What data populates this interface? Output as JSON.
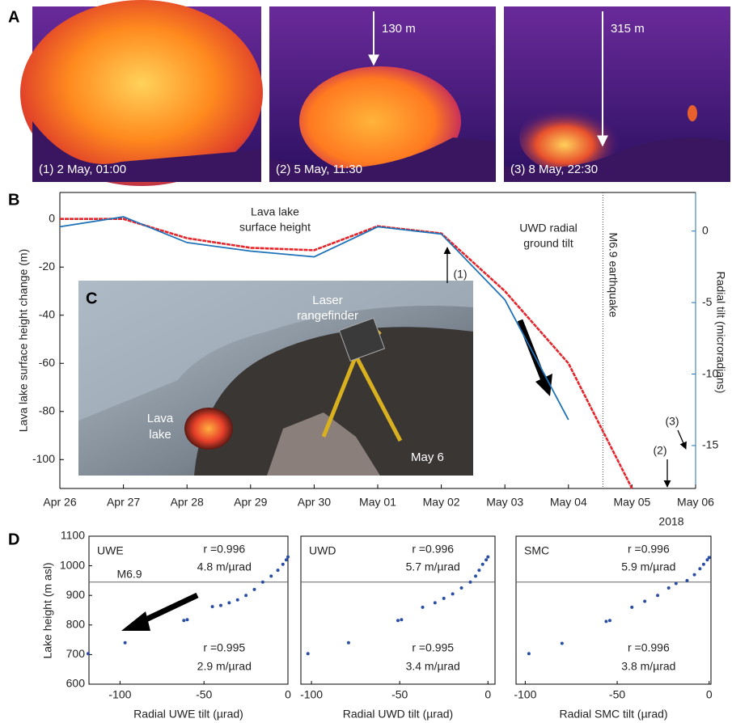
{
  "panel_labels": [
    "A",
    "B",
    "C",
    "D"
  ],
  "photos_a": [
    {
      "caption": "(1) 2 May, 01:00"
    },
    {
      "caption": "(2) 5 May, 11:30",
      "drop": "130 m"
    },
    {
      "caption": "(3) 8 May, 22:30",
      "drop": "315 m"
    }
  ],
  "photo_c": {
    "rangefinder": [
      "Laser",
      "rangefinder"
    ],
    "lake": [
      "Lava",
      "lake"
    ],
    "date": "May 6"
  },
  "chart_data": [
    {
      "type": "line",
      "x": [
        "2018-04-26",
        "2018-04-27",
        "2018-04-28",
        "2018-04-29",
        "2018-04-30",
        "2018-05-01",
        "2018-05-02",
        "2018-05-03",
        "2018-05-04",
        "2018-05-05"
      ],
      "xlim": [
        "2018-04-26",
        "2018-05-06"
      ],
      "xticks": [
        {
          "value": "2018-04-26",
          "label": "Apr 26"
        },
        {
          "value": "2018-04-27",
          "label": "Apr 27"
        },
        {
          "value": "2018-04-28",
          "label": "Apr 28"
        },
        {
          "value": "2018-04-29",
          "label": "Apr 29"
        },
        {
          "value": "2018-04-30",
          "label": "Apr 30"
        },
        {
          "value": "2018-05-01",
          "label": "May 01"
        },
        {
          "value": "2018-05-02",
          "label": "May 02"
        },
        {
          "value": "2018-05-03",
          "label": "May 03"
        },
        {
          "value": "2018-05-04",
          "label": "May 04"
        },
        {
          "value": "2018-05-05",
          "label": "May 05"
        },
        {
          "value": "2018-05-06",
          "label": "May 06"
        }
      ],
      "year_label": "2018",
      "ylabel": "Lava lake surface height change (m)",
      "y2label": "Radial tilt (microradians)",
      "ylim": [
        -112,
        11
      ],
      "yticks": [
        -100,
        -80,
        -60,
        -40,
        -20,
        0
      ],
      "y2lim": [
        -18,
        2.7
      ],
      "y2ticks": [
        -15,
        -10,
        -5,
        0
      ],
      "series": [
        {
          "name": [
            "Lava lake",
            "surface height"
          ],
          "color": "#e3262b",
          "values": [
            0,
            0,
            -8,
            -12,
            -13,
            -3,
            -6,
            -30,
            -60,
            -112
          ]
        },
        {
          "name": [
            "UWD radial",
            "ground tilt"
          ],
          "color": "#1f72b8",
          "axis": "y2",
          "values": [
            0.3,
            1.0,
            -0.8,
            -1.4,
            -1.8,
            0.3,
            -0.2,
            -4.8,
            -13.2,
            null
          ]
        }
      ],
      "quake": {
        "label": "M6.9 earthquake",
        "x": "2018-05-04T13:00"
      },
      "event_labels": [
        "(1)",
        "(2)",
        "(3)"
      ]
    },
    {
      "type": "scatter",
      "station": "UWE",
      "color": "#2a4ea3",
      "x": [
        -119,
        -97,
        -62,
        -60,
        -45,
        -40,
        -35,
        -30,
        -25,
        -20,
        -15,
        -10,
        -6,
        -3,
        -1,
        0
      ],
      "values": [
        703,
        740,
        815,
        818,
        862,
        866,
        875,
        885,
        900,
        920,
        945,
        965,
        985,
        1005,
        1020,
        1030
      ],
      "xlim": [
        -118.5,
        0
      ],
      "xticks": [
        -100,
        -50,
        0
      ],
      "ylim": [
        600,
        1100
      ],
      "yticks": [
        600,
        700,
        800,
        900,
        1000,
        1100
      ],
      "xlabel": "Radial UWE tilt (µrad)",
      "ylabel": "Lake height (m asl)",
      "fit_upper": [
        "r =0.996",
        "4.8 m/µrad"
      ],
      "fit_lower": [
        "r =0.995",
        "2.9 m/µrad"
      ],
      "quake_line": {
        "label": "M6.9",
        "y": 945
      }
    },
    {
      "type": "scatter",
      "station": "UWD",
      "color": "#2a4ea3",
      "x": [
        -102,
        -79,
        -51,
        -49,
        -37,
        -30,
        -25,
        -20,
        -15,
        -10,
        -7,
        -5,
        -3,
        -1,
        0
      ],
      "values": [
        703,
        740,
        815,
        818,
        860,
        875,
        890,
        905,
        925,
        945,
        965,
        985,
        1005,
        1020,
        1030
      ],
      "xlim": [
        -106,
        4
      ],
      "xticks": [
        -100,
        -50,
        0
      ],
      "ylim": [
        600,
        1100
      ],
      "xlabel": "Radial UWD tilt (µrad)",
      "fit_upper": [
        "r =0.996",
        "5.7 m/µrad"
      ],
      "fit_lower": [
        "r =0.995",
        "3.4 m/µrad"
      ],
      "quake_line": {
        "y": 945
      }
    },
    {
      "type": "scatter",
      "station": "SMC",
      "color": "#2a4ea3",
      "x": [
        -98,
        -80,
        -56,
        -54,
        -42,
        -35,
        -28,
        -22,
        -18,
        -12,
        -8,
        -5,
        -3,
        -1,
        0
      ],
      "values": [
        703,
        738,
        812,
        815,
        860,
        880,
        900,
        925,
        940,
        950,
        970,
        990,
        1005,
        1020,
        1028
      ],
      "xlim": [
        -105,
        1
      ],
      "xticks": [
        -100,
        -50,
        0
      ],
      "ylim": [
        600,
        1100
      ],
      "xlabel": "Radial SMC tilt (µrad)",
      "fit_upper": [
        "r =0.996",
        "5.9 m/µrad"
      ],
      "fit_lower": [
        "r =0.996",
        "3.8 m/µrad"
      ],
      "quake_line": {
        "y": 945
      }
    }
  ]
}
